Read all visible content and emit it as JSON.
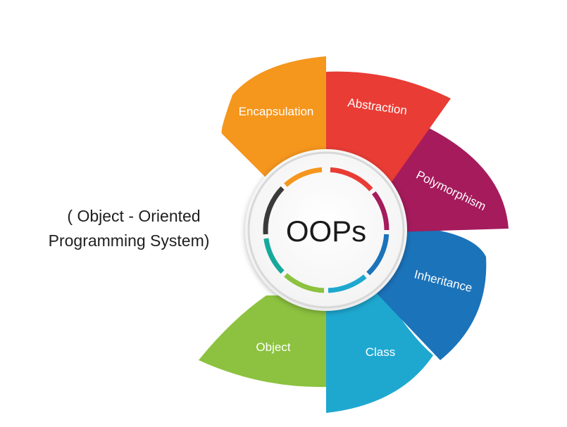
{
  "title": "OOPs",
  "subtitle": {
    "line1": "( Object - Oriented",
    "line2": "Programming System)"
  },
  "segments": [
    {
      "label": "Encapsulation",
      "color": "#f5961d"
    },
    {
      "label": "Abstraction",
      "color": "#e93c35"
    },
    {
      "label": "Polymorphism",
      "color": "#a51b5c"
    },
    {
      "label": "Inheritance",
      "color": "#1b73ba"
    },
    {
      "label": "Class",
      "color": "#1ea8d0"
    },
    {
      "label": "Object",
      "color": "#8cc23f"
    }
  ],
  "ring_colors": {
    "dark": "#3a3a3a",
    "teal": "#16a99b"
  }
}
